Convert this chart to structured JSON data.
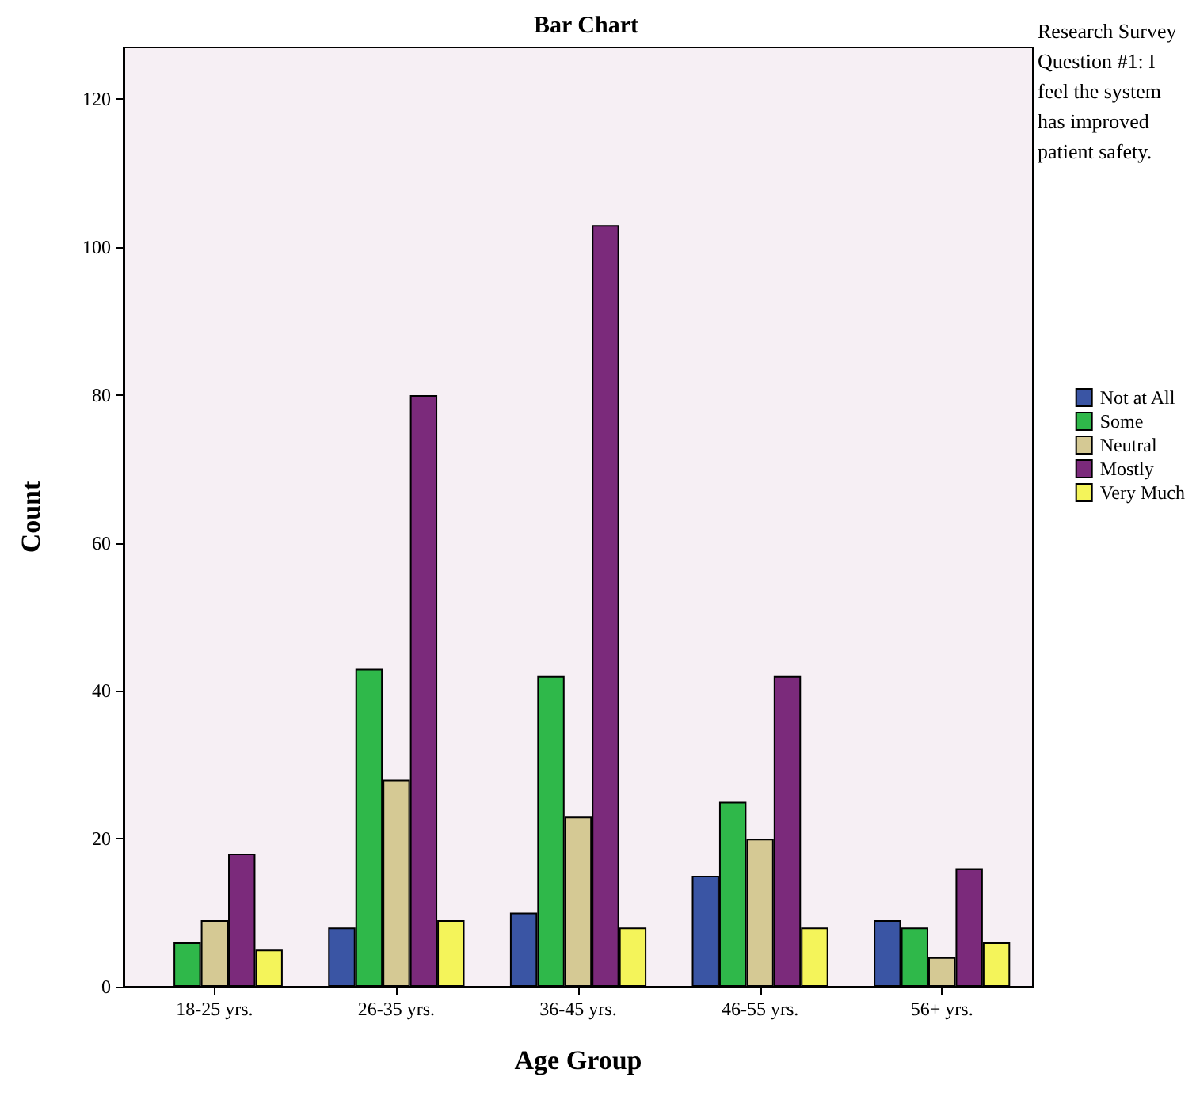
{
  "chart_data": {
    "type": "bar",
    "title": "Bar Chart",
    "xlabel": "Age Group",
    "ylabel": "Count",
    "legend_title": "Research Survey Question #1: I feel the system has improved patient safety.",
    "categories": [
      "18-25 yrs.",
      "26-35 yrs.",
      "36-45 yrs.",
      "46-55 yrs.",
      "56+ yrs."
    ],
    "series": [
      {
        "name": "Not at All",
        "color": "#3a55a4",
        "values": [
          null,
          8,
          10,
          15,
          9
        ]
      },
      {
        "name": "Some",
        "color": "#2fb84a",
        "values": [
          6,
          43,
          42,
          25,
          8
        ]
      },
      {
        "name": "Neutral",
        "color": "#d5c994",
        "values": [
          9,
          28,
          23,
          20,
          4
        ]
      },
      {
        "name": "Mostly",
        "color": "#7b2a7b",
        "values": [
          18,
          80,
          103,
          42,
          16
        ]
      },
      {
        "name": "Very Much",
        "color": "#f4f45a",
        "values": [
          5,
          9,
          8,
          8,
          6
        ]
      }
    ],
    "ylim": [
      0,
      127
    ],
    "yticks": [
      0,
      20,
      40,
      60,
      80,
      100,
      120
    ],
    "grid": false,
    "legend": "right"
  }
}
